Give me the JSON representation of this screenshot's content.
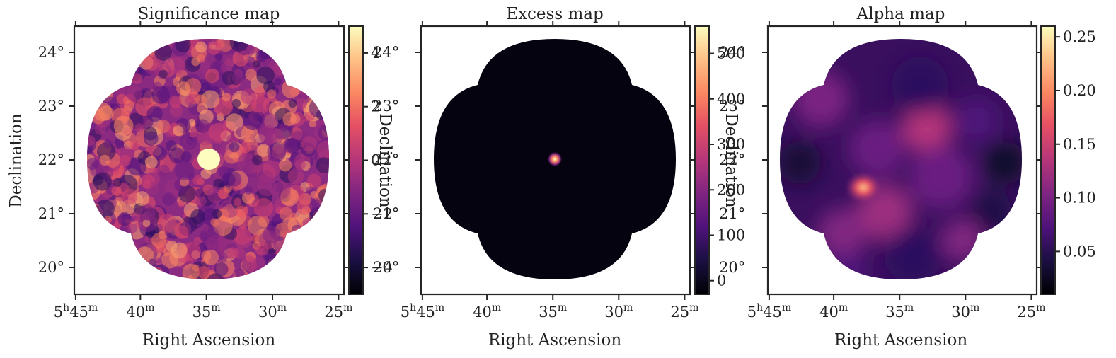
{
  "chart_data": [
    {
      "type": "heatmap",
      "title": "Significance map",
      "xlabel": "Right Ascension",
      "ylabel": "Declination",
      "colormap": "magma",
      "x_ticks": [
        {
          "h": "5",
          "m": "45",
          "label_h": "5",
          "label_m": "45"
        },
        {
          "m": "40"
        },
        {
          "m": "35"
        },
        {
          "m": "30"
        },
        {
          "m": "25"
        }
      ],
      "y_ticks": [
        "20°",
        "21°",
        "22°",
        "23°",
        "24°"
      ],
      "colorbar_ticks": [
        -4,
        -2,
        0,
        2,
        4
      ],
      "colorbar_range": [
        -5,
        5
      ],
      "overlap_ticks": [
        "24°",
        "23°",
        "22°",
        "21°",
        "20°"
      ],
      "overlap_label": "Declination",
      "hotspot": {
        "ra_min": 34.8,
        "dec": 22.0,
        "level": 5
      }
    },
    {
      "type": "heatmap",
      "title": "Excess map",
      "xlabel": "Right Ascension",
      "ylabel": "",
      "colormap": "magma",
      "x_ticks": [
        {
          "h": "5",
          "m": "45"
        },
        {
          "m": "40"
        },
        {
          "m": "35"
        },
        {
          "m": "30"
        },
        {
          "m": "25"
        }
      ],
      "colorbar_ticks": [
        0,
        100,
        200,
        300,
        400,
        500
      ],
      "colorbar_range": [
        -30,
        560
      ],
      "overlap_ticks": [
        "24°",
        "23°",
        "22°",
        "21°",
        "20°"
      ],
      "overlap_label": "Declination",
      "hotspot": {
        "ra_min": 34.8,
        "dec": 22.0,
        "level": 560
      }
    },
    {
      "type": "heatmap",
      "title": "Alpha map",
      "xlabel": "Right Ascension",
      "ylabel": "",
      "colormap": "magma",
      "x_ticks": [
        {
          "h": "5",
          "m": "45"
        },
        {
          "m": "40"
        },
        {
          "m": "35"
        },
        {
          "m": "30"
        },
        {
          "m": "25"
        }
      ],
      "colorbar_ticks": [
        "0.05",
        "0.10",
        "0.15",
        "0.20",
        "0.25"
      ],
      "colorbar_range": [
        0.01,
        0.26
      ],
      "hotspot": {
        "ra_min": 37.5,
        "dec": 21.5,
        "level": 0.2
      }
    }
  ]
}
